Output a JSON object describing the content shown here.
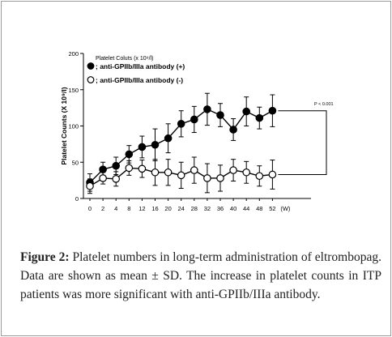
{
  "chart_data": {
    "type": "line",
    "x_categories": [
      0,
      2,
      4,
      8,
      12,
      16,
      20,
      24,
      28,
      32,
      36,
      40,
      44,
      48,
      52
    ],
    "x_unit": "(W)",
    "ylabel": "Platelet Counts (X 10⁹/l)",
    "ylim": [
      0,
      200
    ],
    "yticks": [
      0,
      50,
      100,
      150,
      200
    ],
    "legend_title": "Platelet Coluts (x 10⁹/l)",
    "legend_position": "top-left",
    "series": [
      {
        "name": "; anti-GPIIb/IIIa antibody (+)",
        "marker": "filled-circle",
        "color": "#000000",
        "mean": [
          22,
          40,
          45,
          61,
          71,
          74,
          83,
          103,
          109,
          123,
          115,
          95,
          120,
          111,
          121
        ],
        "sd": [
          12,
          10,
          12,
          12,
          15,
          22,
          20,
          18,
          18,
          22,
          16,
          15,
          20,
          15,
          22
        ]
      },
      {
        "name": "; anti-GPIIb/IIIa antibody (-)",
        "marker": "open-circle",
        "color": "#000000",
        "mean": [
          17,
          28,
          27,
          42,
          41,
          36,
          36,
          32,
          39,
          28,
          28,
          39,
          36,
          31,
          33
        ],
        "sd": [
          10,
          8,
          10,
          10,
          12,
          18,
          18,
          18,
          18,
          20,
          18,
          15,
          15,
          14,
          20
        ]
      }
    ],
    "annotation": "P < 0.001",
    "grid": false
  },
  "caption": {
    "label": "Figure 2:",
    "text": " Platelet numbers in long-term administration of eltrombopag. Data are shown as mean ± SD. The increase in platelet counts in ITP patients was more significant with anti-GPIIb/IIIa antibody."
  }
}
